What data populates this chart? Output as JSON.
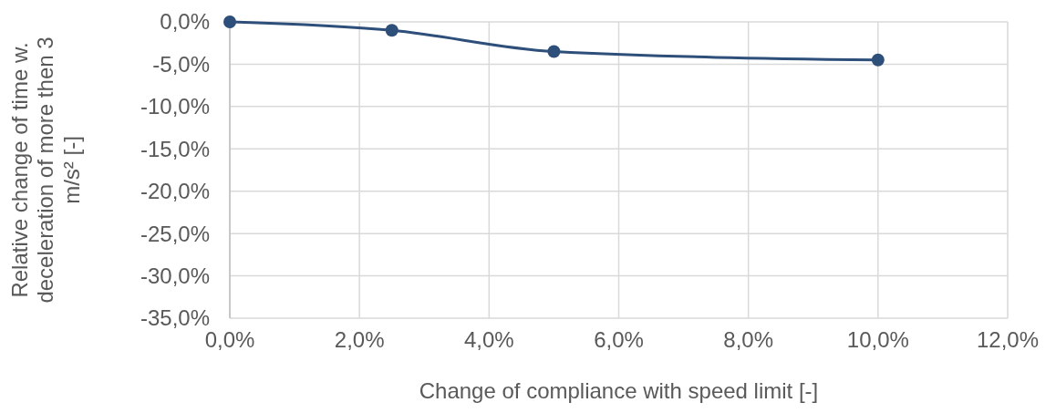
{
  "chart_data": {
    "type": "line",
    "xlabel": "Change of compliance with speed limit [-]",
    "ylabel": "Relative change of time w. deceleration of more then 3 m/s² [-]",
    "x": [
      0,
      2.5,
      5,
      10
    ],
    "series": [
      {
        "color": "#2e4f7a",
        "values": [
          0,
          -1.0,
          -3.5,
          -4.5
        ]
      }
    ],
    "xlim": [
      0,
      12
    ],
    "xticks": [
      {
        "value": 0,
        "label": "0,0%"
      },
      {
        "value": 2,
        "label": "2,0%"
      },
      {
        "value": 4,
        "label": "4,0%"
      },
      {
        "value": 6,
        "label": "6,0%"
      },
      {
        "value": 8,
        "label": "8,0%"
      },
      {
        "value": 10,
        "label": "10,0%"
      },
      {
        "value": 12,
        "label": "12,0%"
      }
    ],
    "ylim": [
      -35,
      0
    ],
    "yticks": [
      {
        "value": 0,
        "label": "0,0%"
      },
      {
        "value": -5,
        "label": "-5,0%"
      },
      {
        "value": -10,
        "label": "-10,0%"
      },
      {
        "value": -15,
        "label": "-15,0%"
      },
      {
        "value": -20,
        "label": "-20,0%"
      },
      {
        "value": -25,
        "label": "-25,0%"
      },
      {
        "value": -30,
        "label": "-30,0%"
      },
      {
        "value": -35,
        "label": "-35,0%"
      }
    ],
    "grid": true,
    "marker": "circle",
    "line_style": "solid"
  }
}
